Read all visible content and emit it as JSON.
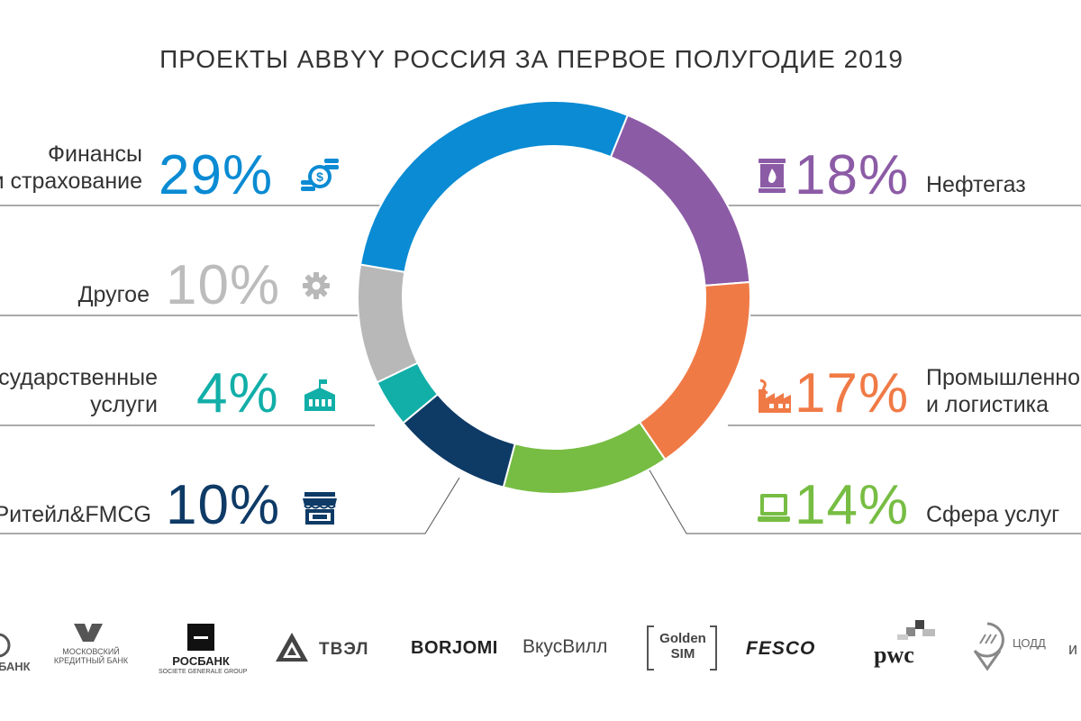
{
  "title": "ПРОЕКТЫ ABBYY РОССИЯ ЗА ПЕРВОЕ ПОЛУГОДИЕ 2019",
  "chart_data": {
    "type": "pie",
    "title": "ПРОЕКТЫ ABBYY РОССИЯ ЗА ПЕРВОЕ ПОЛУГОДИЕ 2019",
    "donut": true,
    "slices": [
      {
        "label": "Нефтегаз",
        "value": 18,
        "pct_label": "18%",
        "color": "#8c5ba6",
        "icon": "oil-barrel-icon"
      },
      {
        "label": "Промышленность и логистика",
        "value": 17,
        "pct_label": "17%",
        "color": "#f07a46",
        "icon": "factory-icon"
      },
      {
        "label": "Сфера услуг",
        "value": 14,
        "pct_label": "14%",
        "color": "#77bd43",
        "icon": "laptop-icon"
      },
      {
        "label": "Ритейл&FMCG",
        "value": 10,
        "pct_label": "10%",
        "color": "#0e3a66",
        "icon": "store-icon"
      },
      {
        "label": "Государственные услуги",
        "value": 4,
        "pct_label": "4%",
        "color": "#12aea8",
        "icon": "government-building-icon"
      },
      {
        "label": "Другое",
        "value": 10,
        "pct_label": "10%",
        "color": "#b8b8b8",
        "icon": "gear-icon"
      },
      {
        "label": "Финансы и страхование",
        "value": 29,
        "pct_label": "29%",
        "color": "#0a8bd3",
        "icon": "coins-icon"
      }
    ]
  },
  "labels": {
    "finance": {
      "line1": "Финансы",
      "line2": "и страхование"
    },
    "other": {
      "line1": "Другое"
    },
    "gov": {
      "line1": "Государственные",
      "line2": "услуги"
    },
    "retail": {
      "line1": "Ритейл&FMCG"
    },
    "oil": {
      "line1": "Нефтегаз"
    },
    "industry": {
      "line1": "Промышленность",
      "line2": "и логистика"
    },
    "services": {
      "line1": "Сфера услуг"
    }
  },
  "logos": [
    {
      "name": "sberbank-logo",
      "text": "БАНК"
    },
    {
      "name": "mkb-logo",
      "text": "МОСКОВСКИЙ КРЕДИТНЫЙ БАНК"
    },
    {
      "name": "rosbank-logo",
      "text": "РОСБАНК",
      "subtext": "SOCIETE GENERALE GROUP"
    },
    {
      "name": "tvel-logo",
      "text": "ТВЭЛ"
    },
    {
      "name": "borjomi-logo",
      "text": "BORJOMI"
    },
    {
      "name": "vkusvill-logo",
      "text": "ВкусВилл"
    },
    {
      "name": "golden-sim-logo",
      "text": "Golden SIM"
    },
    {
      "name": "fesco-logo",
      "text": "FESCO"
    },
    {
      "name": "pwc-logo",
      "text": "pwc"
    },
    {
      "name": "codd-logo",
      "text": "ЦОДД"
    },
    {
      "name": "more-logos-text",
      "text": "и"
    }
  ]
}
